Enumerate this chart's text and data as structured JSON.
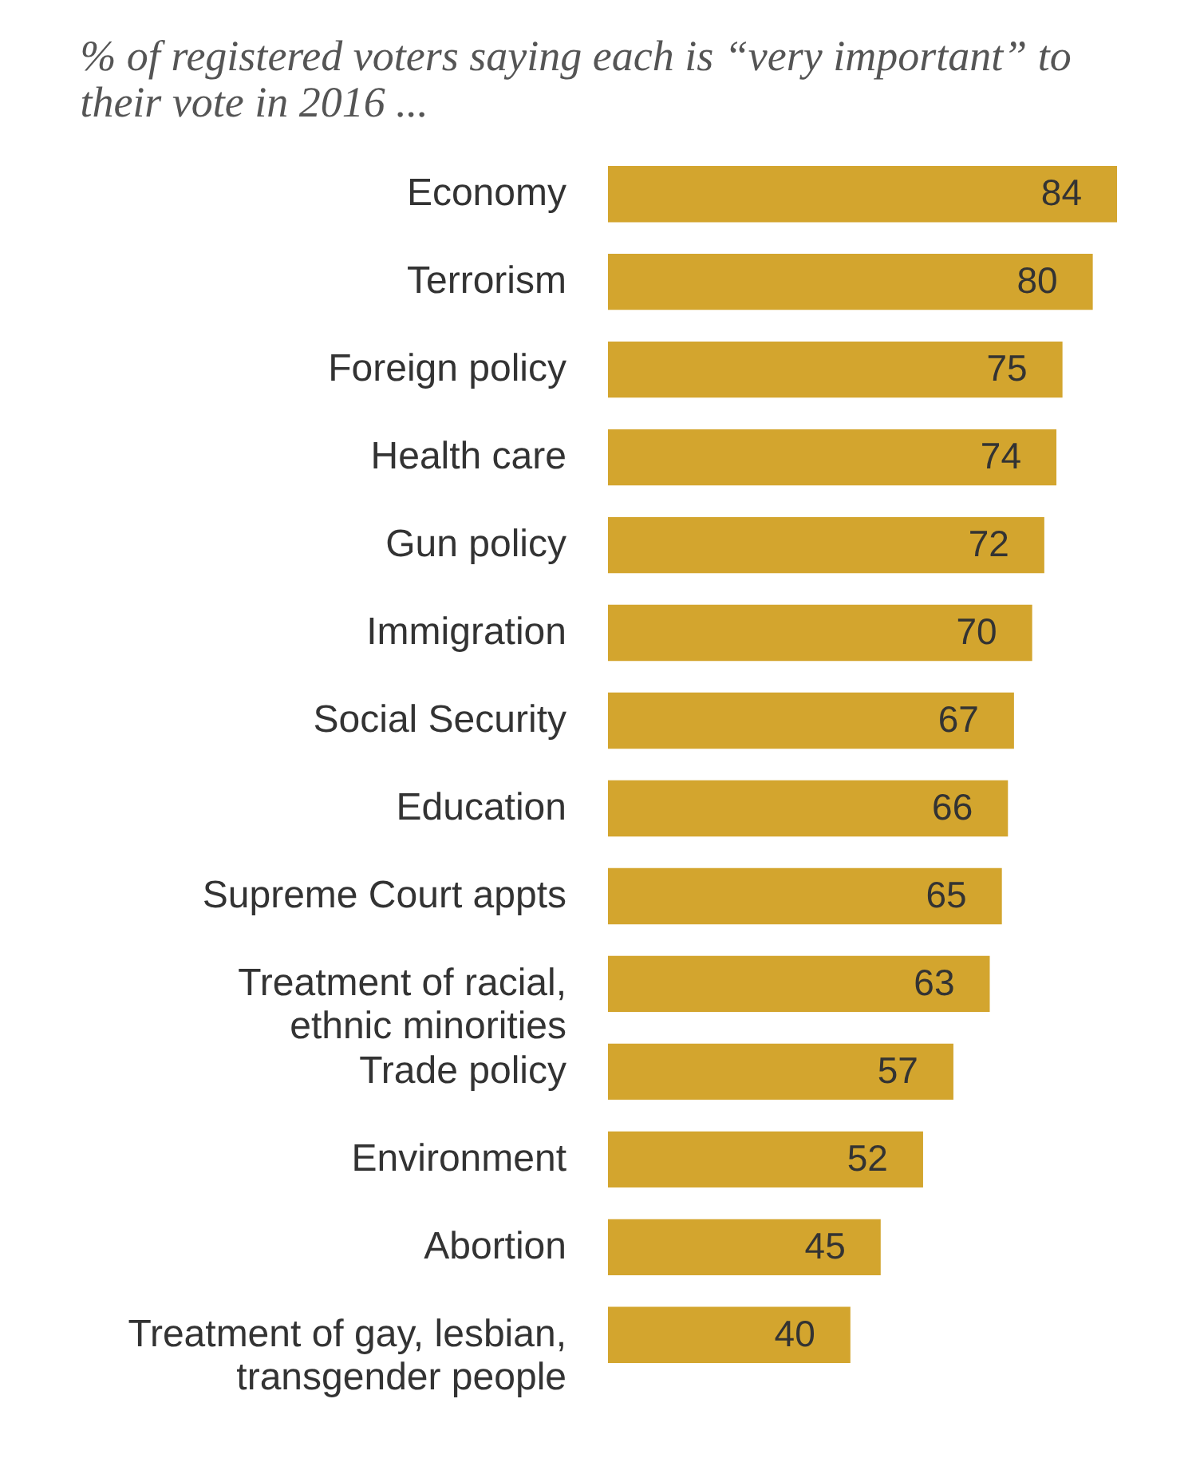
{
  "chart_data": {
    "type": "bar",
    "orientation": "horizontal",
    "title": "% of registered voters saying each is “very important” to their vote in 2016 ...",
    "categories": [
      "Economy",
      "Terrorism",
      "Foreign policy",
      "Health care",
      "Gun policy",
      "Immigration",
      "Social Security",
      "Education",
      "Supreme Court appts",
      "Treatment of racial, ethnic minorities",
      "Trade policy",
      "Environment",
      "Abortion",
      "Treatment of gay, lesbian, transgender people"
    ],
    "values": [
      84,
      80,
      75,
      74,
      72,
      70,
      67,
      66,
      65,
      63,
      57,
      52,
      45,
      40
    ],
    "color": "#d3a52e",
    "data_labels": true
  }
}
